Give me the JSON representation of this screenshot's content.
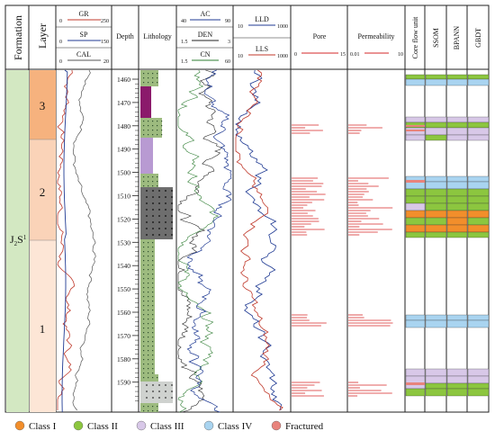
{
  "headers": {
    "formation": "Formation",
    "layer": "Layer",
    "depth": "Depth",
    "lithology": "Lithology",
    "pore": "Pore",
    "permeability": "Permeability",
    "core_flow_unit": "Core flow unit",
    "ssom": "SSOM",
    "bpann": "BPANN",
    "gbdt": "GBDT"
  },
  "curves": {
    "gr": {
      "name": "GR",
      "min": "0",
      "max": "250",
      "color": "#c0392b"
    },
    "sp": {
      "name": "SP",
      "min": "0",
      "max": "150",
      "color": "#1f3a93"
    },
    "cal": {
      "name": "CAL",
      "min": "0",
      "max": "20",
      "color": "#555555"
    },
    "ac": {
      "name": "AC",
      "min": "40",
      "max": "90",
      "color": "#1f3a93"
    },
    "den": {
      "name": "DEN",
      "min": "1.5",
      "max": "3",
      "color": "#222222"
    },
    "cn": {
      "name": "CN",
      "min": "1.5",
      "max": "60",
      "color": "#2e7d32"
    },
    "lld": {
      "name": "LLD",
      "min": "10",
      "max": "1000",
      "color": "#1f3a93"
    },
    "lls": {
      "name": "LLS",
      "min": "10",
      "max": "1000",
      "color": "#c0392b"
    },
    "pore": {
      "min": "0",
      "max": "15",
      "color": "#d62728"
    },
    "perm": {
      "min": "0.01",
      "max": "10",
      "color": "#d62728"
    }
  },
  "formation_label": "J",
  "formation_sub": "2",
  "formation_s": "S",
  "formation_sup": "1",
  "layers": [
    "3",
    "2",
    "1"
  ],
  "depth_ticks": [
    "1460",
    "1470",
    "1480",
    "1490",
    "1500",
    "1510",
    "1520",
    "1530",
    "1540",
    "1550",
    "1560",
    "1570",
    "1580",
    "1590"
  ],
  "legend": [
    {
      "label": "Class I",
      "color": "#f28e2b"
    },
    {
      "label": "Class II",
      "color": "#8cc63f"
    },
    {
      "label": "Class III",
      "color": "#d8c8e8"
    },
    {
      "label": "Class IV",
      "color": "#a9d4f0"
    },
    {
      "label": "Fractured",
      "color": "#e8837c"
    }
  ]
}
